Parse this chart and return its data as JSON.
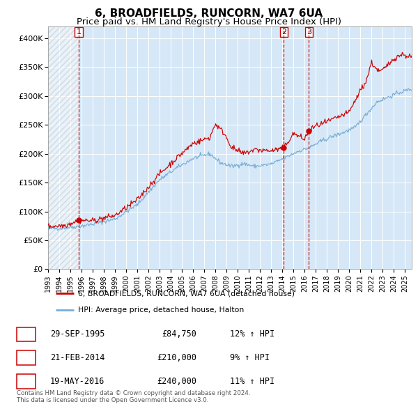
{
  "title": "6, BROADFIELDS, RUNCORN, WA7 6UA",
  "subtitle": "Price paid vs. HM Land Registry's House Price Index (HPI)",
  "ylim": [
    0,
    420000
  ],
  "xlim_start": 1993.0,
  "xlim_end": 2025.6,
  "yticks": [
    0,
    50000,
    100000,
    150000,
    200000,
    250000,
    300000,
    350000,
    400000
  ],
  "ytick_labels": [
    "£0",
    "£50K",
    "£100K",
    "£150K",
    "£200K",
    "£250K",
    "£300K",
    "£350K",
    "£400K"
  ],
  "plot_bg_color": "#d6e8f7",
  "hatch_area_end": 1995.75,
  "sales": [
    {
      "date_year": 1995.75,
      "price": 84750,
      "label": "1"
    },
    {
      "date_year": 2014.13,
      "price": 210000,
      "label": "2"
    },
    {
      "date_year": 2016.38,
      "price": 240000,
      "label": "3"
    }
  ],
  "legend_line1": "6, BROADFIELDS, RUNCORN, WA7 6UA (detached house)",
  "legend_line2": "HPI: Average price, detached house, Halton",
  "table_entries": [
    {
      "num": "1",
      "date": "29-SEP-1995",
      "price": "£84,750",
      "hpi": "12% ↑ HPI"
    },
    {
      "num": "2",
      "date": "21-FEB-2014",
      "price": "£210,000",
      "hpi": "9% ↑ HPI"
    },
    {
      "num": "3",
      "date": "19-MAY-2016",
      "price": "£240,000",
      "hpi": "11% ↑ HPI"
    }
  ],
  "footnote": "Contains HM Land Registry data © Crown copyright and database right 2024.\nThis data is licensed under the Open Government Licence v3.0.",
  "line_color_red": "#cc0000",
  "line_color_blue": "#7aadd4",
  "vline_color": "#cc0000",
  "marker_color": "#cc0000",
  "grid_color": "#ffffff",
  "title_fontsize": 11,
  "subtitle_fontsize": 9.5,
  "tick_fontsize": 8,
  "xtick_years": [
    1993,
    1994,
    1995,
    1996,
    1997,
    1998,
    1999,
    2000,
    2001,
    2002,
    2003,
    2004,
    2005,
    2006,
    2007,
    2008,
    2009,
    2010,
    2011,
    2012,
    2013,
    2014,
    2015,
    2016,
    2017,
    2018,
    2019,
    2020,
    2021,
    2022,
    2023,
    2024,
    2025
  ]
}
